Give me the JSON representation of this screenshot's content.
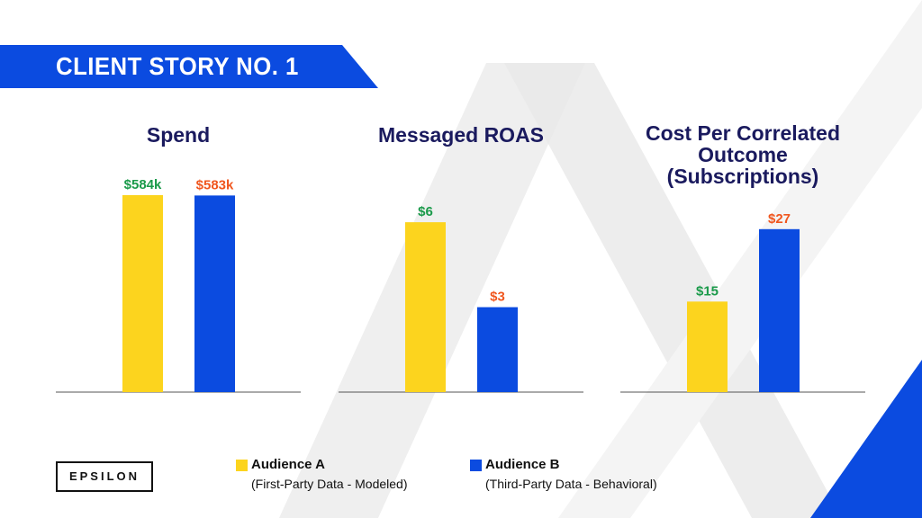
{
  "banner": {
    "title": "CLIENT STORY NO. 1"
  },
  "colors": {
    "audience_a": "#fcd41e",
    "audience_b": "#0b4be0",
    "label_a": "#1a9a4a",
    "label_b": "#f0561e",
    "title": "#1a1a5e"
  },
  "chart_data": [
    {
      "type": "bar",
      "title": "Spend",
      "categories": [
        "Audience A",
        "Audience B"
      ],
      "values": [
        584,
        583
      ],
      "labels": [
        "$584k",
        "$583k"
      ],
      "ylim": [
        0,
        680
      ]
    },
    {
      "type": "bar",
      "title": "Messaged ROAS",
      "categories": [
        "Audience A",
        "Audience B"
      ],
      "values": [
        6,
        3
      ],
      "labels": [
        "$6",
        "$3"
      ],
      "ylim": [
        0,
        8.1
      ]
    },
    {
      "type": "bar",
      "title_lines": [
        "Cost Per Correlated",
        "Outcome",
        "(Subscriptions)"
      ],
      "categories": [
        "Audience A",
        "Audience B"
      ],
      "values": [
        15,
        27
      ],
      "labels": [
        "$15",
        "$27"
      ],
      "ylim": [
        0,
        38
      ]
    }
  ],
  "legend": [
    {
      "name": "Audience A",
      "detail": "(First-Party Data - Modeled)"
    },
    {
      "name": "Audience B",
      "detail": "(Third-Party Data - Behavioral)"
    }
  ],
  "logo": {
    "text": "EPSILON"
  }
}
